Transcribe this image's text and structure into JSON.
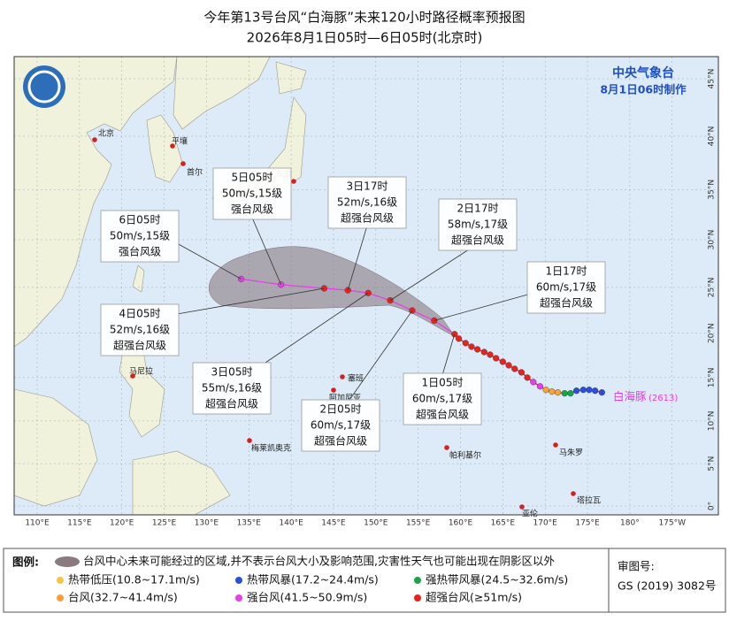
{
  "header": {
    "title": "今年第13号台风“白海豚”未来120小时路径概率预报图",
    "subtitle": "2026年8月1日05时—6日05时(北京时)"
  },
  "agency": {
    "name": "中央气象台",
    "issued": "8月1日06时制作"
  },
  "chart_data": {
    "type": "track-map",
    "grid": true,
    "xticks": [
      {
        "value": 110,
        "label": "110°E"
      },
      {
        "value": 115,
        "label": "115°E"
      },
      {
        "value": 120,
        "label": "120°E"
      },
      {
        "value": 125,
        "label": "125°E"
      },
      {
        "value": 130,
        "label": "130°E"
      },
      {
        "value": 135,
        "label": "135°E"
      },
      {
        "value": 140,
        "label": "140°E"
      },
      {
        "value": 145,
        "label": "145°E"
      },
      {
        "value": 150,
        "label": "150°E"
      },
      {
        "value": 155,
        "label": "155°E"
      },
      {
        "value": 160,
        "label": "160°E"
      },
      {
        "value": 165,
        "label": "165°E"
      },
      {
        "value": 170,
        "label": "170°E"
      },
      {
        "value": 175,
        "label": "175°E"
      },
      {
        "value": 180,
        "label": "180°"
      },
      {
        "value": -175,
        "label": "175°W"
      }
    ],
    "yticks": [
      {
        "value": 0,
        "label": "0°"
      },
      {
        "value": 5,
        "label": "5°N"
      },
      {
        "value": 10,
        "label": "10°N"
      },
      {
        "value": 15,
        "label": "15°N"
      },
      {
        "value": 20,
        "label": "20°N"
      },
      {
        "value": 25,
        "label": "25°N"
      },
      {
        "value": 30,
        "label": "30°N"
      },
      {
        "value": 35,
        "label": "35°N"
      },
      {
        "value": 40,
        "label": "40°N"
      },
      {
        "value": 45,
        "label": "45°N"
      }
    ],
    "typhoon": {
      "name": "白海豚",
      "code": "(2613)"
    },
    "past_track": {
      "lon": [
        176.7,
        175.9,
        175.2,
        174.5,
        173.7,
        173.0,
        172.3,
        171.5,
        170.8,
        170.1,
        169.4,
        168.6,
        167.9,
        167.2,
        166.4,
        165.7,
        165.0,
        164.2,
        163.5,
        162.8,
        162.0,
        161.3,
        160.6,
        159.8
      ],
      "lat": [
        13.3,
        13.5,
        13.6,
        13.6,
        13.5,
        13.2,
        13.2,
        13.3,
        13.4,
        13.6,
        14.0,
        14.5,
        15.0,
        15.6,
        16.0,
        16.4,
        16.8,
        17.2,
        17.6,
        17.9,
        18.2,
        18.5,
        18.9,
        19.4
      ],
      "colors": [
        "#2a4fe0",
        "#2a4fe0",
        "#2a4fe0",
        "#2a4fe0",
        "#2a4fe0",
        "#1aa34a",
        "#1aa34a",
        "#f9a23a",
        "#f9a23a",
        "#f9a23a",
        "#e83ee8",
        "#e83ee8",
        "#e8231f",
        "#e8231f",
        "#e8231f",
        "#e8231f",
        "#e8231f",
        "#e8231f",
        "#e8231f",
        "#e8231f",
        "#e8231f",
        "#e8231f",
        "#e8231f",
        "#e8231f"
      ]
    },
    "forecast": {
      "time": [
        "1日05时",
        "1日17时",
        "2日05时",
        "2日17时",
        "3日05时",
        "3日17时",
        "4日05时",
        "5日05时",
        "6日05时"
      ],
      "wind": [
        "60m/s,17级",
        "60m/s,17级",
        "60m/s,17级",
        "58m/s,17级",
        "55m/s,16级",
        "52m/s,16级",
        "52m/s,16级",
        "50m/s,15级",
        "50m/s,15级"
      ],
      "grade": [
        "超强台风级",
        "超强台风级",
        "超强台风级",
        "超强台风级",
        "超强台风级",
        "超强台风级",
        "超强台风级",
        "强台风级",
        "强台风级"
      ],
      "lon": [
        159.3,
        156.9,
        154.3,
        151.7,
        149.1,
        146.7,
        143.9,
        138.8,
        134.1
      ],
      "lat": [
        19.9,
        21.4,
        22.5,
        23.6,
        24.4,
        24.7,
        24.9,
        25.3,
        25.9
      ],
      "colors": [
        "#e8231f",
        "#e8231f",
        "#e8231f",
        "#e8231f",
        "#e8231f",
        "#e8231f",
        "#e8231f",
        "#e83ee8",
        "#e83ee8"
      ]
    }
  },
  "places": [
    "北京",
    "平壤",
    "首尔",
    "东京",
    "马尼拉",
    "塞班",
    "阿加尼亚",
    "梅莱凯奥克",
    "帕利基尔",
    "马朱罗",
    "塔拉瓦",
    "亚伦"
  ],
  "legend": {
    "label": "图例:",
    "cone": "台风中心未来可能经过的区域,并不表示台风大小及影响范围,灾害性天气也可能出现在阴影区以外",
    "levels": [
      {
        "name": "热带低压(10.8~17.1m/s)",
        "color": "#f5c542"
      },
      {
        "name": "热带风暴(17.2~24.4m/s)",
        "color": "#2a4fe0"
      },
      {
        "name": "强热带风暴(24.5~32.6m/s)",
        "color": "#1aa34a"
      },
      {
        "name": "台风(32.7~41.4m/s)",
        "color": "#f9a23a"
      },
      {
        "name": "强台风(41.5~50.9m/s)",
        "color": "#e83ee8"
      },
      {
        "name": "超强台风(≥51m/s)",
        "color": "#e8231f"
      }
    ]
  },
  "review": {
    "label": "审图号:",
    "number": "GS (2019) 3082号"
  }
}
